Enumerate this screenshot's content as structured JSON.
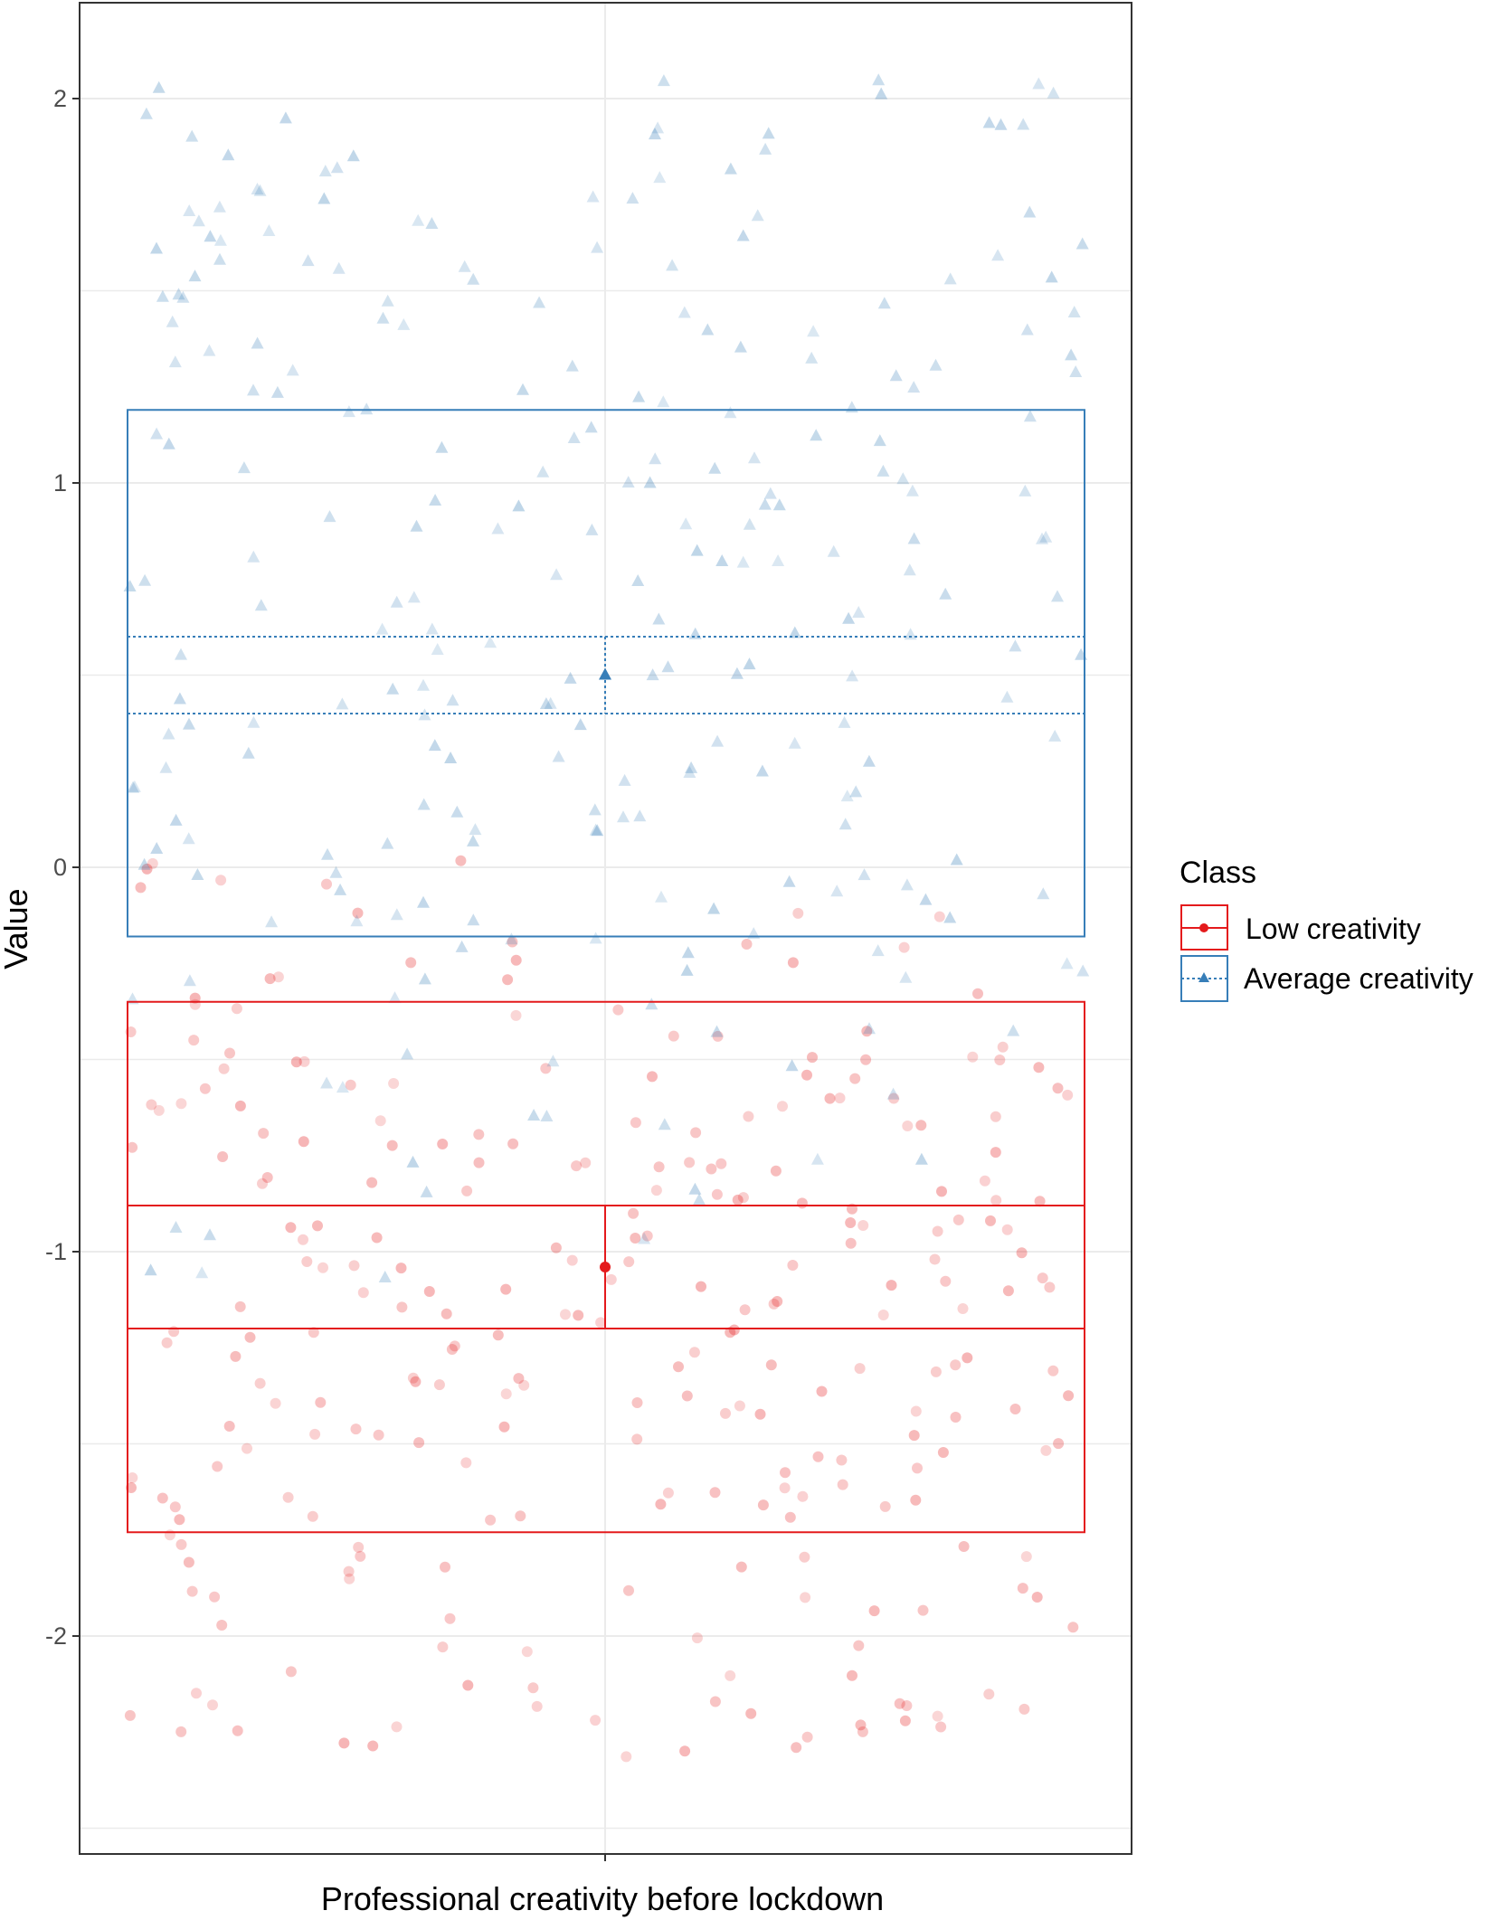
{
  "chart_data": {
    "type": "scatter",
    "title": "",
    "xlabel": "Professional creativity before lockdown",
    "ylabel": "Value",
    "ylim": [
      -2.5,
      2.25
    ],
    "yticks": [
      2,
      1,
      0,
      -1,
      -2
    ],
    "ytick_labels": [
      "2",
      "1",
      "0",
      "-1",
      "-2"
    ],
    "grid": true,
    "legend": {
      "title": "Class",
      "position": "right"
    },
    "series": [
      {
        "name": "Low creativity",
        "marker": "circle",
        "line_style": "solid",
        "color": "#e41a1c",
        "mean": -1.04,
        "ci": [
          -1.2,
          -0.88
        ],
        "sd_range": [
          -1.73,
          -0.35
        ],
        "points": [
          -2.3,
          -2.27,
          -2.25,
          -2.24,
          -2.21,
          -2.2,
          -2.18,
          -2.17,
          -2.13,
          -2.1,
          -2.03,
          -1.99,
          -1.94,
          -1.9,
          -1.88,
          -1.84,
          -1.81,
          -1.78,
          -1.75,
          -1.7,
          -1.68,
          -1.66,
          -1.64,
          -1.62,
          -1.6,
          -1.57,
          -1.55,
          -1.52,
          -1.5,
          -1.48,
          -1.46,
          -1.44,
          -1.42,
          -1.4,
          -1.38,
          -1.36,
          -1.34,
          -1.32,
          -1.3,
          -1.28,
          -1.26,
          -1.24,
          -1.22,
          -1.2,
          -1.18,
          -1.16,
          -1.14,
          -1.12,
          -1.1,
          -1.08,
          -1.06,
          -1.04,
          -1.02,
          -1.0,
          -0.98,
          -0.96,
          -0.94,
          -0.92,
          -0.9,
          -0.88,
          -0.86,
          -0.84,
          -0.82,
          -0.8,
          -0.78,
          -0.76,
          -0.74,
          -0.72,
          -0.7,
          -0.68,
          -0.66,
          -0.64,
          -0.62,
          -0.6,
          -0.58,
          -0.56,
          -0.54,
          -0.52,
          -0.5,
          -0.48,
          -0.45,
          -0.42,
          -0.38,
          -0.34,
          -0.3,
          -0.26,
          -0.2,
          -0.12,
          -0.05,
          0.0
        ]
      },
      {
        "name": "Average creativity",
        "marker": "triangle",
        "line_style": "dotted",
        "color": "#377eb8",
        "mean": 0.5,
        "ci": [
          0.4,
          0.6
        ],
        "sd_range": [
          -0.18,
          1.19
        ],
        "points": [
          2.03,
          2.02,
          1.95,
          1.92,
          1.89,
          1.86,
          1.83,
          1.78,
          1.75,
          1.72,
          1.69,
          1.66,
          1.63,
          1.6,
          1.57,
          1.55,
          1.52,
          1.5,
          1.47,
          1.44,
          1.41,
          1.38,
          1.35,
          1.32,
          1.29,
          1.26,
          1.23,
          1.2,
          1.17,
          1.14,
          1.11,
          1.08,
          1.05,
          1.02,
          0.99,
          0.96,
          0.93,
          0.9,
          0.87,
          0.84,
          0.81,
          0.78,
          0.75,
          0.72,
          0.69,
          0.66,
          0.63,
          0.6,
          0.57,
          0.54,
          0.51,
          0.48,
          0.45,
          0.42,
          0.39,
          0.36,
          0.33,
          0.3,
          0.27,
          0.24,
          0.21,
          0.18,
          0.15,
          0.12,
          0.09,
          0.06,
          0.03,
          0.0,
          -0.03,
          -0.06,
          -0.09,
          -0.12,
          -0.15,
          -0.18,
          -0.21,
          -0.25,
          -0.3,
          -0.35,
          -0.42,
          -0.5,
          -0.58,
          -0.66,
          -0.75,
          -0.85,
          -0.95,
          -1.05
        ]
      }
    ]
  }
}
